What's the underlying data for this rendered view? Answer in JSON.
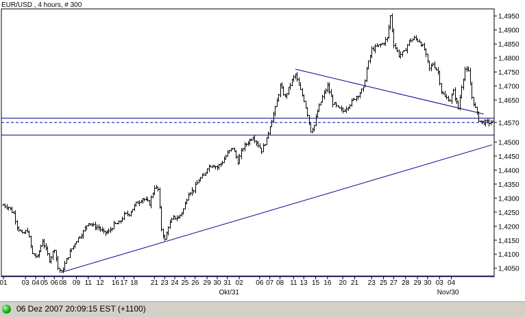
{
  "chart_data": {
    "type": "ohlc",
    "title": "EUR/USD , 4 hours, # 300",
    "y_ticks": [
      "1,4950",
      "1,4900",
      "1,4850",
      "1,4800",
      "1,4750",
      "1,4700",
      "1,4650",
      "1,4570",
      "1,4500",
      "1,4450",
      "1,4400",
      "1,4350",
      "1,4300",
      "1,4250",
      "1,4200",
      "1,4150",
      "1,4100",
      "1,4050"
    ],
    "y_tick_values": [
      1.495,
      1.49,
      1.485,
      1.48,
      1.475,
      1.47,
      1.465,
      1.457,
      1.45,
      1.445,
      1.44,
      1.435,
      1.43,
      1.425,
      1.42,
      1.415,
      1.41,
      1.405
    ],
    "ylim": [
      1.402,
      1.4975
    ],
    "x_ticks": [
      "01",
      "03",
      "04",
      "05",
      "06",
      "08",
      "09",
      "11",
      "12",
      "16",
      "17",
      "18",
      "21",
      "23",
      "24",
      "25",
      "26",
      "29",
      "30",
      "31",
      "02",
      "06",
      "07",
      "08",
      "11",
      "13",
      "15",
      "16",
      "20",
      "21",
      "23",
      "25",
      "27",
      "28",
      "29",
      "30",
      "03",
      "04"
    ],
    "x_tick_index": [
      0,
      13,
      19,
      24,
      30,
      35,
      43,
      50,
      57,
      66,
      71,
      77,
      89,
      95,
      101,
      107,
      113,
      120,
      126,
      132,
      139,
      151,
      157,
      163,
      171,
      177,
      184,
      191,
      200,
      207,
      217,
      224,
      230,
      237,
      244,
      250,
      257,
      264
    ],
    "x_month_labels": [
      {
        "label": "Okt/31",
        "index": 133
      },
      {
        "label": "Nov/30",
        "index": 262
      }
    ],
    "current_price": "1,4570",
    "current_value": 1.457,
    "horizontal_levels": [
      1.4585,
      1.4525,
      1.4022
    ],
    "trendlines": [
      {
        "from": [
          34,
          1.4035
        ],
        "to": [
          288,
          1.449
        ]
      },
      {
        "from": [
          172,
          1.476
        ],
        "to": [
          283,
          1.46
        ]
      }
    ],
    "keypoints": [
      [
        0,
        1.4275
      ],
      [
        3,
        1.4268
      ],
      [
        6,
        1.4245
      ],
      [
        8,
        1.42
      ],
      [
        11,
        1.417
      ],
      [
        14,
        1.4185
      ],
      [
        17,
        1.41
      ],
      [
        20,
        1.409
      ],
      [
        23,
        1.415
      ],
      [
        27,
        1.408
      ],
      [
        30,
        1.412
      ],
      [
        32,
        1.405
      ],
      [
        34,
        1.4035
      ],
      [
        37,
        1.408
      ],
      [
        40,
        1.412
      ],
      [
        43,
        1.415
      ],
      [
        47,
        1.418
      ],
      [
        50,
        1.4215
      ],
      [
        53,
        1.42
      ],
      [
        56,
        1.4195
      ],
      [
        59,
        1.4175
      ],
      [
        62,
        1.418
      ],
      [
        65,
        1.4205
      ],
      [
        68,
        1.421
      ],
      [
        71,
        1.424
      ],
      [
        74,
        1.4245
      ],
      [
        78,
        1.428
      ],
      [
        82,
        1.43
      ],
      [
        86,
        1.428
      ],
      [
        89,
        1.434
      ],
      [
        91,
        1.433
      ],
      [
        93,
        1.419
      ],
      [
        95,
        1.415
      ],
      [
        97,
        1.42
      ],
      [
        100,
        1.423
      ],
      [
        103,
        1.423
      ],
      [
        106,
        1.426
      ],
      [
        109,
        1.432
      ],
      [
        112,
        1.433
      ],
      [
        115,
        1.4365
      ],
      [
        118,
        1.438
      ],
      [
        120,
        1.441
      ],
      [
        123,
        1.442
      ],
      [
        126,
        1.441
      ],
      [
        129,
        1.443
      ],
      [
        132,
        1.446
      ],
      [
        135,
        1.448
      ],
      [
        138,
        1.443
      ],
      [
        141,
        1.448
      ],
      [
        144,
        1.45
      ],
      [
        147,
        1.452
      ],
      [
        150,
        1.449
      ],
      [
        152,
        1.447
      ],
      [
        155,
        1.451
      ],
      [
        157,
        1.456
      ],
      [
        160,
        1.462
      ],
      [
        163,
        1.47
      ],
      [
        166,
        1.466
      ],
      [
        170,
        1.472
      ],
      [
        172,
        1.474
      ],
      [
        174,
        1.47
      ],
      [
        177,
        1.465
      ],
      [
        179,
        1.46
      ],
      [
        181,
        1.454
      ],
      [
        183,
        1.456
      ],
      [
        185,
        1.461
      ],
      [
        188,
        1.466
      ],
      [
        191,
        1.47
      ],
      [
        194,
        1.464
      ],
      [
        197,
        1.462
      ],
      [
        200,
        1.461
      ],
      [
        203,
        1.463
      ],
      [
        206,
        1.465
      ],
      [
        209,
        1.467
      ],
      [
        212,
        1.469
      ],
      [
        214,
        1.476
      ],
      [
        217,
        1.483
      ],
      [
        220,
        1.484
      ],
      [
        223,
        1.485
      ],
      [
        226,
        1.487
      ],
      [
        228,
        1.495
      ],
      [
        230,
        1.485
      ],
      [
        233,
        1.481
      ],
      [
        236,
        1.482
      ],
      [
        239,
        1.486
      ],
      [
        242,
        1.487
      ],
      [
        245,
        1.486
      ],
      [
        248,
        1.483
      ],
      [
        251,
        1.476
      ],
      [
        253,
        1.478
      ],
      [
        256,
        1.475
      ],
      [
        258,
        1.468
      ],
      [
        260,
        1.466
      ],
      [
        263,
        1.465
      ],
      [
        265,
        1.468
      ],
      [
        268,
        1.462
      ],
      [
        270,
        1.47
      ],
      [
        272,
        1.476
      ],
      [
        274,
        1.475
      ],
      [
        276,
        1.466
      ],
      [
        278,
        1.462
      ],
      [
        280,
        1.458
      ],
      [
        282,
        1.457
      ]
    ]
  },
  "status": {
    "text": "06 Dez 2007 20:09:15  EST (+1100)"
  }
}
